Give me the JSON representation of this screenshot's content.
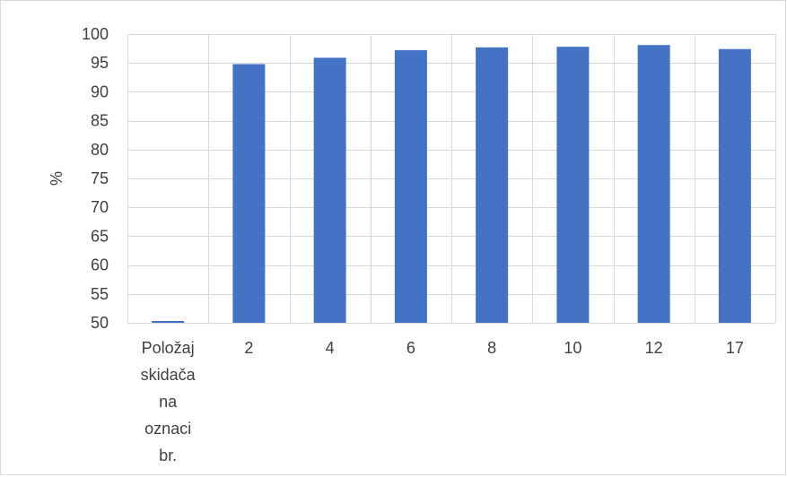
{
  "chart_data": {
    "type": "bar",
    "categories": [
      "Položaj skidača na oznaci br.",
      "2",
      "4",
      "6",
      "8",
      "10",
      "12",
      "17"
    ],
    "category_lines": [
      [
        "Položaj",
        "skidača",
        "na",
        "oznaci",
        "br."
      ],
      [
        "2"
      ],
      [
        "4"
      ],
      [
        "6"
      ],
      [
        "8"
      ],
      [
        "10"
      ],
      [
        "12"
      ],
      [
        "17"
      ]
    ],
    "values": [
      49.8,
      94.8,
      95.9,
      97.2,
      97.7,
      97.8,
      98.1,
      97.4
    ],
    "title": "",
    "xlabel": "",
    "ylabel": "%",
    "ylim": [
      50,
      100
    ],
    "yticks": [
      50,
      55,
      60,
      65,
      70,
      75,
      80,
      85,
      90,
      95,
      100
    ],
    "grid": true,
    "bar_color": "#4472c4",
    "grid_color": "#d9d9d9"
  }
}
